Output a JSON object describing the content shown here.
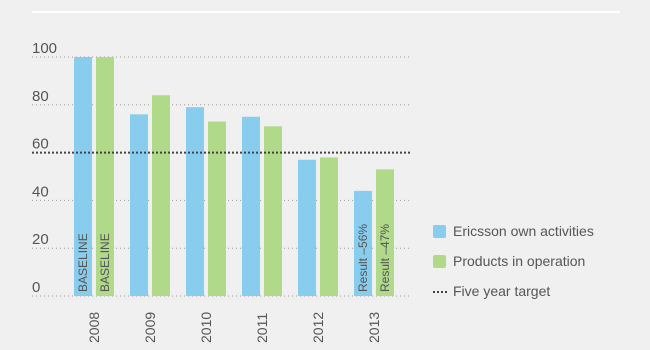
{
  "chart_data": {
    "type": "bar",
    "categories": [
      "2008",
      "2009",
      "2010",
      "2011",
      "2012",
      "2013"
    ],
    "series": [
      {
        "name": "Ericsson own activities",
        "color": "#88ccee",
        "values": [
          100,
          76,
          79,
          75,
          57,
          44
        ],
        "bar_labels": [
          "BASELINE",
          "",
          "",
          "",
          "",
          "Result –56%"
        ]
      },
      {
        "name": "Products in operation",
        "color": "#b0d98a",
        "values": [
          100,
          84,
          73,
          71,
          58,
          53
        ],
        "bar_labels": [
          "BASELINE",
          "",
          "",
          "",
          "",
          "Result –47%"
        ]
      }
    ],
    "target": {
      "name": "Five year target",
      "value": 60,
      "color": "#444444"
    },
    "yticks": [
      0,
      20,
      40,
      60,
      80,
      100
    ],
    "ylim": [
      0,
      100
    ],
    "grid": true,
    "legend_position": "right"
  }
}
